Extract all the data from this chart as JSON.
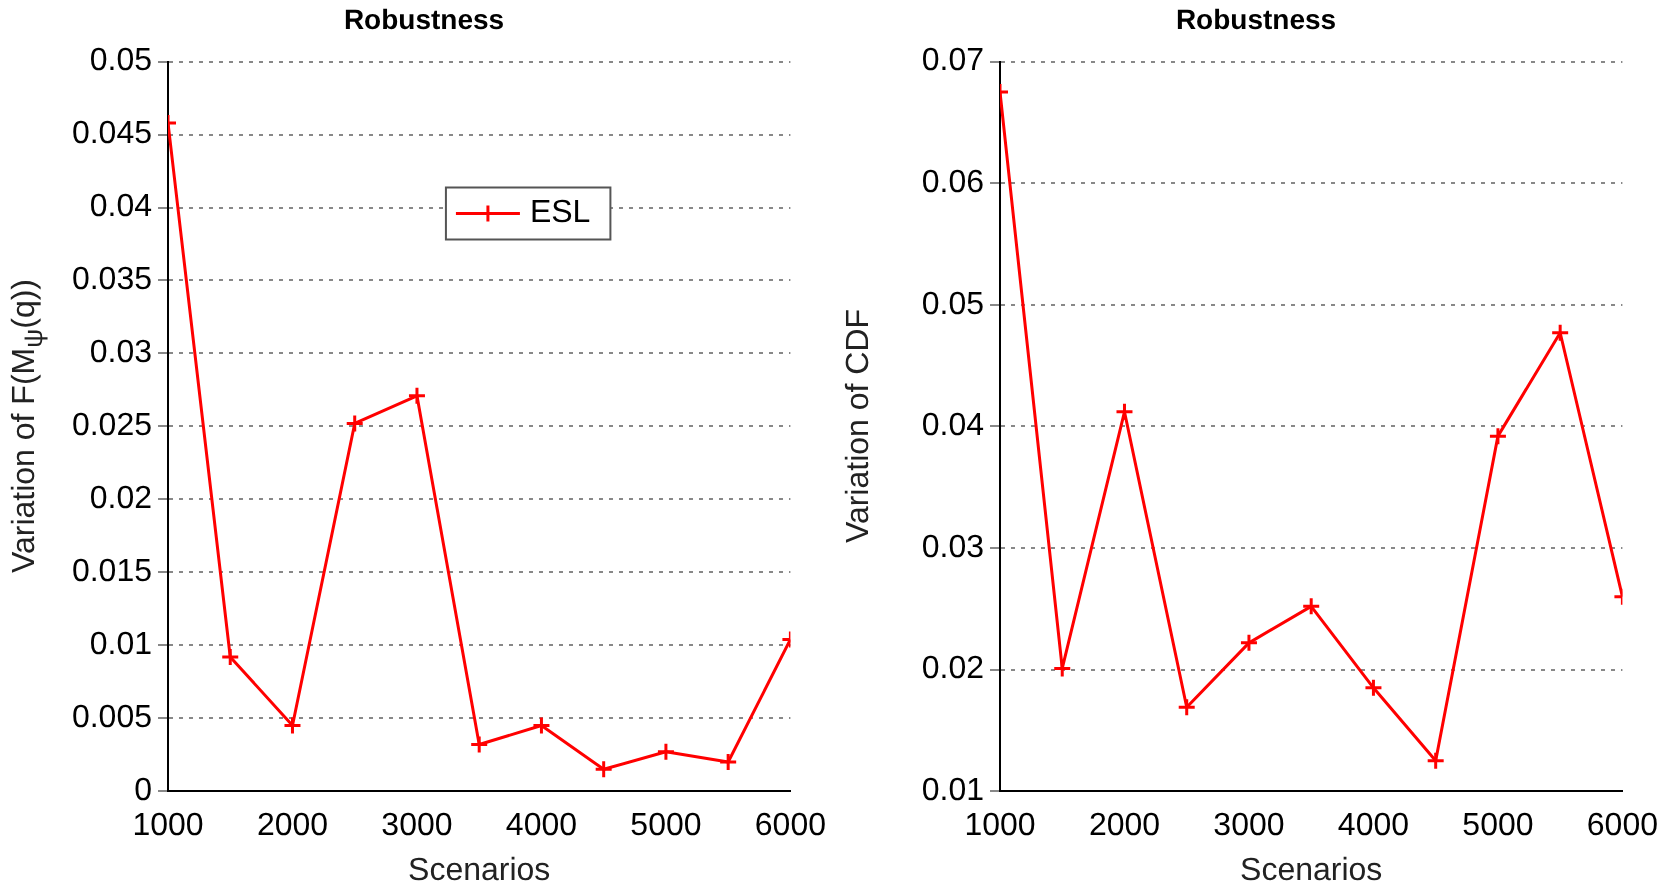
{
  "chart_data": [
    {
      "type": "line",
      "title": "Robustness",
      "xlabel": "Scenarios",
      "ylabel": "Variation of F(M$_{ψ}$(q))",
      "x": [
        1000,
        1500,
        2000,
        2500,
        3000,
        3500,
        4000,
        4500,
        5000,
        5500,
        6000
      ],
      "series": [
        {
          "name": "ESL",
          "color": "#ff0000",
          "values": [
            0.0458,
            0.0092,
            0.0045,
            0.0252,
            0.0271,
            0.0032,
            0.0045,
            0.0015,
            0.0027,
            0.002,
            0.0104
          ]
        }
      ],
      "xlim": [
        1000,
        6000
      ],
      "xticks": [
        1000,
        2000,
        3000,
        4000,
        5000,
        6000
      ],
      "ylim": [
        0,
        0.05
      ],
      "yticks": [
        0,
        0.005,
        0.01,
        0.015,
        0.02,
        0.025,
        0.03,
        0.035,
        0.04,
        0.045,
        0.05
      ],
      "grid": "y",
      "legend": "top right",
      "marker": "cross",
      "line_style": "solid"
    },
    {
      "type": "line",
      "title": "Robustness",
      "xlabel": "Scenarios",
      "ylabel": "Variation of CDF",
      "x": [
        1000,
        1500,
        2000,
        2500,
        3000,
        3500,
        4000,
        4500,
        5000,
        5500,
        6000
      ],
      "series": [
        {
          "color": "#ff0000",
          "values": [
            0.0675,
            0.0201,
            0.0412,
            0.0169,
            0.0222,
            0.0252,
            0.0185,
            0.0125,
            0.0392,
            0.0477,
            0.026
          ]
        }
      ],
      "xlim": [
        1000,
        6000
      ],
      "xticks": [
        1000,
        2000,
        3000,
        4000,
        5000,
        6000
      ],
      "ylim": [
        0.01,
        0.07
      ],
      "yticks": [
        0.01,
        0.02,
        0.03,
        0.04,
        0.05,
        0.06,
        0.07
      ],
      "grid": "y",
      "legend": false,
      "marker": "cross",
      "line_style": "solid"
    }
  ]
}
